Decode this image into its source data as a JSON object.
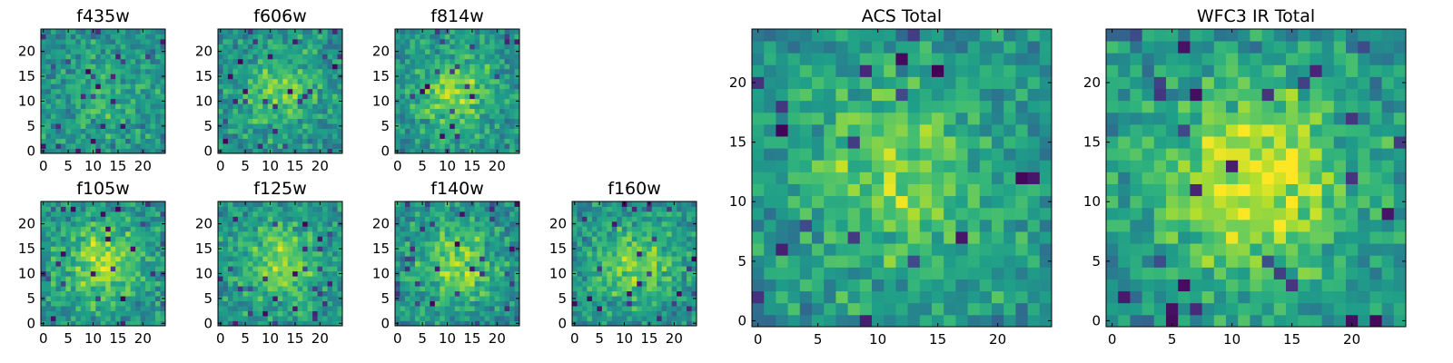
{
  "chart_data": [
    {
      "type": "heatmap",
      "title": "f435w",
      "xticks": [
        0,
        5,
        10,
        15,
        20
      ],
      "yticks": [
        0,
        5,
        10,
        15,
        20
      ],
      "xlim": [
        -0.5,
        24.5
      ],
      "ylim": [
        -0.5,
        24.5
      ],
      "grid": false,
      "colormap": "viridis",
      "center_blob": 0.15,
      "seed": 11
    },
    {
      "type": "heatmap",
      "title": "f606w",
      "xticks": [
        0,
        5,
        10,
        15,
        20
      ],
      "yticks": [
        0,
        5,
        10,
        15,
        20
      ],
      "xlim": [
        -0.5,
        24.5
      ],
      "ylim": [
        -0.5,
        24.5
      ],
      "grid": false,
      "colormap": "viridis",
      "center_blob": 0.25,
      "seed": 23
    },
    {
      "type": "heatmap",
      "title": "f814w",
      "xticks": [
        0,
        5,
        10,
        15,
        20
      ],
      "yticks": [
        0,
        5,
        10,
        15,
        20
      ],
      "xlim": [
        -0.5,
        24.5
      ],
      "ylim": [
        -0.5,
        24.5
      ],
      "grid": false,
      "colormap": "viridis",
      "center_blob": 0.3,
      "seed": 37
    },
    {
      "type": "heatmap",
      "title": "f105w",
      "xticks": [
        0,
        5,
        10,
        15,
        20
      ],
      "yticks": [
        0,
        5,
        10,
        15,
        20
      ],
      "xlim": [
        -0.5,
        24.5
      ],
      "ylim": [
        -0.5,
        24.5
      ],
      "grid": false,
      "colormap": "viridis",
      "center_blob": 0.35,
      "seed": 41
    },
    {
      "type": "heatmap",
      "title": "f125w",
      "xticks": [
        0,
        5,
        10,
        15,
        20
      ],
      "yticks": [
        0,
        5,
        10,
        15,
        20
      ],
      "xlim": [
        -0.5,
        24.5
      ],
      "ylim": [
        -0.5,
        24.5
      ],
      "grid": false,
      "colormap": "viridis",
      "center_blob": 0.3,
      "seed": 53
    },
    {
      "type": "heatmap",
      "title": "f140w",
      "xticks": [
        0,
        5,
        10,
        15,
        20
      ],
      "yticks": [
        0,
        5,
        10,
        15,
        20
      ],
      "xlim": [
        -0.5,
        24.5
      ],
      "ylim": [
        -0.5,
        24.5
      ],
      "grid": false,
      "colormap": "viridis",
      "center_blob": 0.3,
      "seed": 67
    },
    {
      "type": "heatmap",
      "title": "f160w",
      "xticks": [
        0,
        5,
        10,
        15,
        20
      ],
      "yticks": [
        0,
        5,
        10,
        15,
        20
      ],
      "xlim": [
        -0.5,
        24.5
      ],
      "ylim": [
        -0.5,
        24.5
      ],
      "grid": false,
      "colormap": "viridis",
      "center_blob": 0.3,
      "seed": 79
    },
    {
      "type": "heatmap",
      "title": "ACS Total",
      "xticks": [
        0,
        5,
        10,
        15,
        20
      ],
      "yticks": [
        0,
        5,
        10,
        15,
        20
      ],
      "xlim": [
        -0.5,
        24.5
      ],
      "ylim": [
        -0.5,
        24.5
      ],
      "grid": false,
      "colormap": "viridis",
      "center_blob": 0.3,
      "seed": 97
    },
    {
      "type": "heatmap",
      "title": "WFC3 IR Total",
      "xticks": [
        0,
        5,
        10,
        15,
        20
      ],
      "yticks": [
        0,
        5,
        10,
        15,
        20
      ],
      "xlim": [
        -0.5,
        24.5
      ],
      "ylim": [
        -0.5,
        24.5
      ],
      "grid": false,
      "colormap": "viridis",
      "center_blob": 0.45,
      "seed": 113
    }
  ]
}
